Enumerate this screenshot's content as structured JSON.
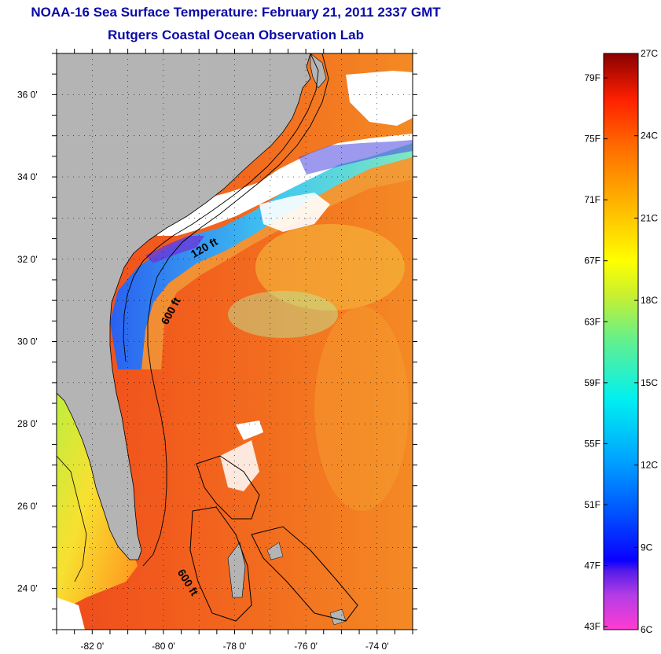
{
  "title": {
    "line1": "NOAA-16 Sea Surface Temperature:  February 21, 2011 2337 GMT",
    "line2": "Rutgers Coastal Ocean Observation Lab"
  },
  "map": {
    "lon_min": -83,
    "lon_max": -73,
    "lat_min": 23,
    "lat_max": 37,
    "lat_labels": [
      {
        "value": 36,
        "text": "36 0'"
      },
      {
        "value": 34,
        "text": "34 0'"
      },
      {
        "value": 32,
        "text": "32 0'"
      },
      {
        "value": 30,
        "text": "30 0'"
      },
      {
        "value": 28,
        "text": "28 0'"
      },
      {
        "value": 26,
        "text": "26 0'"
      },
      {
        "value": 24,
        "text": "24 0'"
      }
    ],
    "lon_labels": [
      {
        "value": -82,
        "text": "-82 0'"
      },
      {
        "value": -80,
        "text": "-80 0'"
      },
      {
        "value": -78,
        "text": "-78 0'"
      },
      {
        "value": -76,
        "text": "-76 0'"
      },
      {
        "value": -74,
        "text": "-74 0'"
      }
    ],
    "isobath_labels": [
      {
        "text": "120 ft",
        "lon": -78.8,
        "lat": 32.2,
        "angle": -30
      },
      {
        "text": "600 ft",
        "lon": -79.7,
        "lat": 30.7,
        "angle": -62
      },
      {
        "text": "600 ft",
        "lon": -79.4,
        "lat": 24.1,
        "angle": 58
      }
    ],
    "colors": {
      "land": "#b4b4b4",
      "cloud": "#ffffff",
      "warm_sst": "#f04a1c",
      "gulf_sst": "#f4781f",
      "shelf_cold": "#2a6cf0",
      "shelf_mid": "#3cd8e0",
      "shelf_green": "#a8e85a"
    }
  },
  "legend": {
    "fahrenheit": [
      {
        "value": 79,
        "text": "79F"
      },
      {
        "value": 75,
        "text": "75F"
      },
      {
        "value": 71,
        "text": "71F"
      },
      {
        "value": 67,
        "text": "67F"
      },
      {
        "value": 63,
        "text": "63F"
      },
      {
        "value": 59,
        "text": "59F"
      },
      {
        "value": 55,
        "text": "55F"
      },
      {
        "value": 51,
        "text": "51F"
      },
      {
        "value": 47,
        "text": "47F"
      },
      {
        "value": 43,
        "text": "43F"
      }
    ],
    "celsius": [
      {
        "value": 27,
        "text": "27C"
      },
      {
        "value": 24,
        "text": "24C"
      },
      {
        "value": 21,
        "text": "21C"
      },
      {
        "value": 18,
        "text": "18C"
      },
      {
        "value": 15,
        "text": "15C"
      },
      {
        "value": 12,
        "text": "12C"
      },
      {
        "value": 9,
        "text": "9C"
      },
      {
        "value": 6,
        "text": "6C"
      }
    ],
    "min_c": 6,
    "max_c": 27
  }
}
